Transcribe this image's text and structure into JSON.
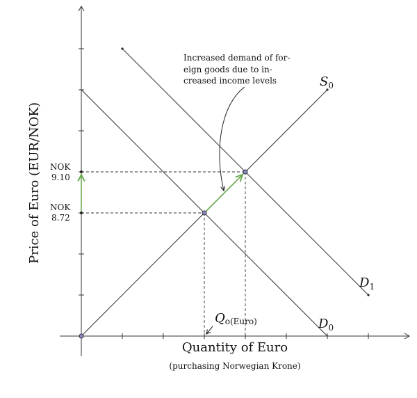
{
  "diagram": {
    "y_axis_label": "Price of Euro (EUR/NOK)",
    "x_axis_label": "Quantity of Euro",
    "x_axis_sublabel": "(purchasing Norwegian Krone)",
    "price_low": {
      "line1": "NOK",
      "line2": "8.72"
    },
    "price_high": {
      "line1": "NOK",
      "line2": "9.10"
    },
    "curves": {
      "supply": {
        "main": "S",
        "sub": "0"
      },
      "demand_old": {
        "main": "D",
        "sub": "0"
      },
      "demand_new": {
        "main": "D",
        "sub": "1"
      }
    },
    "quantity_label": {
      "main": "Q",
      "sub": "o(Euro)"
    },
    "annotation": {
      "lines": [
        "Increased demand of for-",
        "eign goods due to in-",
        "creased income levels"
      ]
    },
    "colors": {
      "line": "#333333",
      "shift_arrow": "#6aa84f",
      "point_fill": "#8888cc"
    }
  }
}
